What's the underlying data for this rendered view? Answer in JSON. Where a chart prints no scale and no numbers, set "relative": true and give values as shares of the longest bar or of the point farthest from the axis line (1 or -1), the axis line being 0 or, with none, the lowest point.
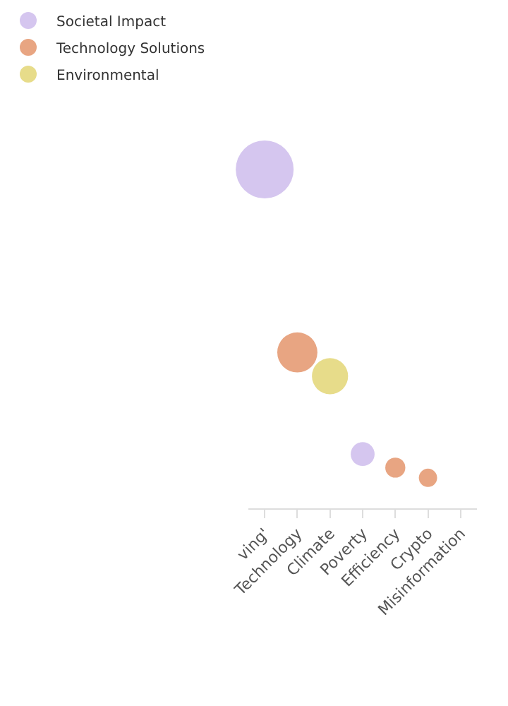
{
  "chart_data": {
    "type": "bubble",
    "relative": true,
    "categories": [
      "ving'",
      "Technology",
      "Climate",
      "Poverty",
      "Efficiency",
      "Crypto",
      "Misinformation"
    ],
    "series": [
      {
        "name": "Societal Impact",
        "color": "#d5c6ef",
        "values": [
          1,
          null,
          null,
          0.16,
          null,
          null,
          null
        ],
        "sizes": [
          1,
          null,
          null,
          0.17,
          null,
          null,
          null
        ]
      },
      {
        "name": "Technology Solutions",
        "color": "#e8a582",
        "values": [
          null,
          0.46,
          null,
          null,
          0.12,
          0.09,
          null
        ],
        "sizes": [
          null,
          0.48,
          null,
          null,
          0.12,
          0.1,
          null
        ]
      },
      {
        "name": "Environmental",
        "color": "#e7dc8a",
        "values": [
          null,
          null,
          0.39,
          null,
          null,
          null,
          null
        ],
        "sizes": [
          null,
          null,
          0.39,
          null,
          null,
          null,
          null
        ]
      }
    ],
    "legend": "top left"
  }
}
